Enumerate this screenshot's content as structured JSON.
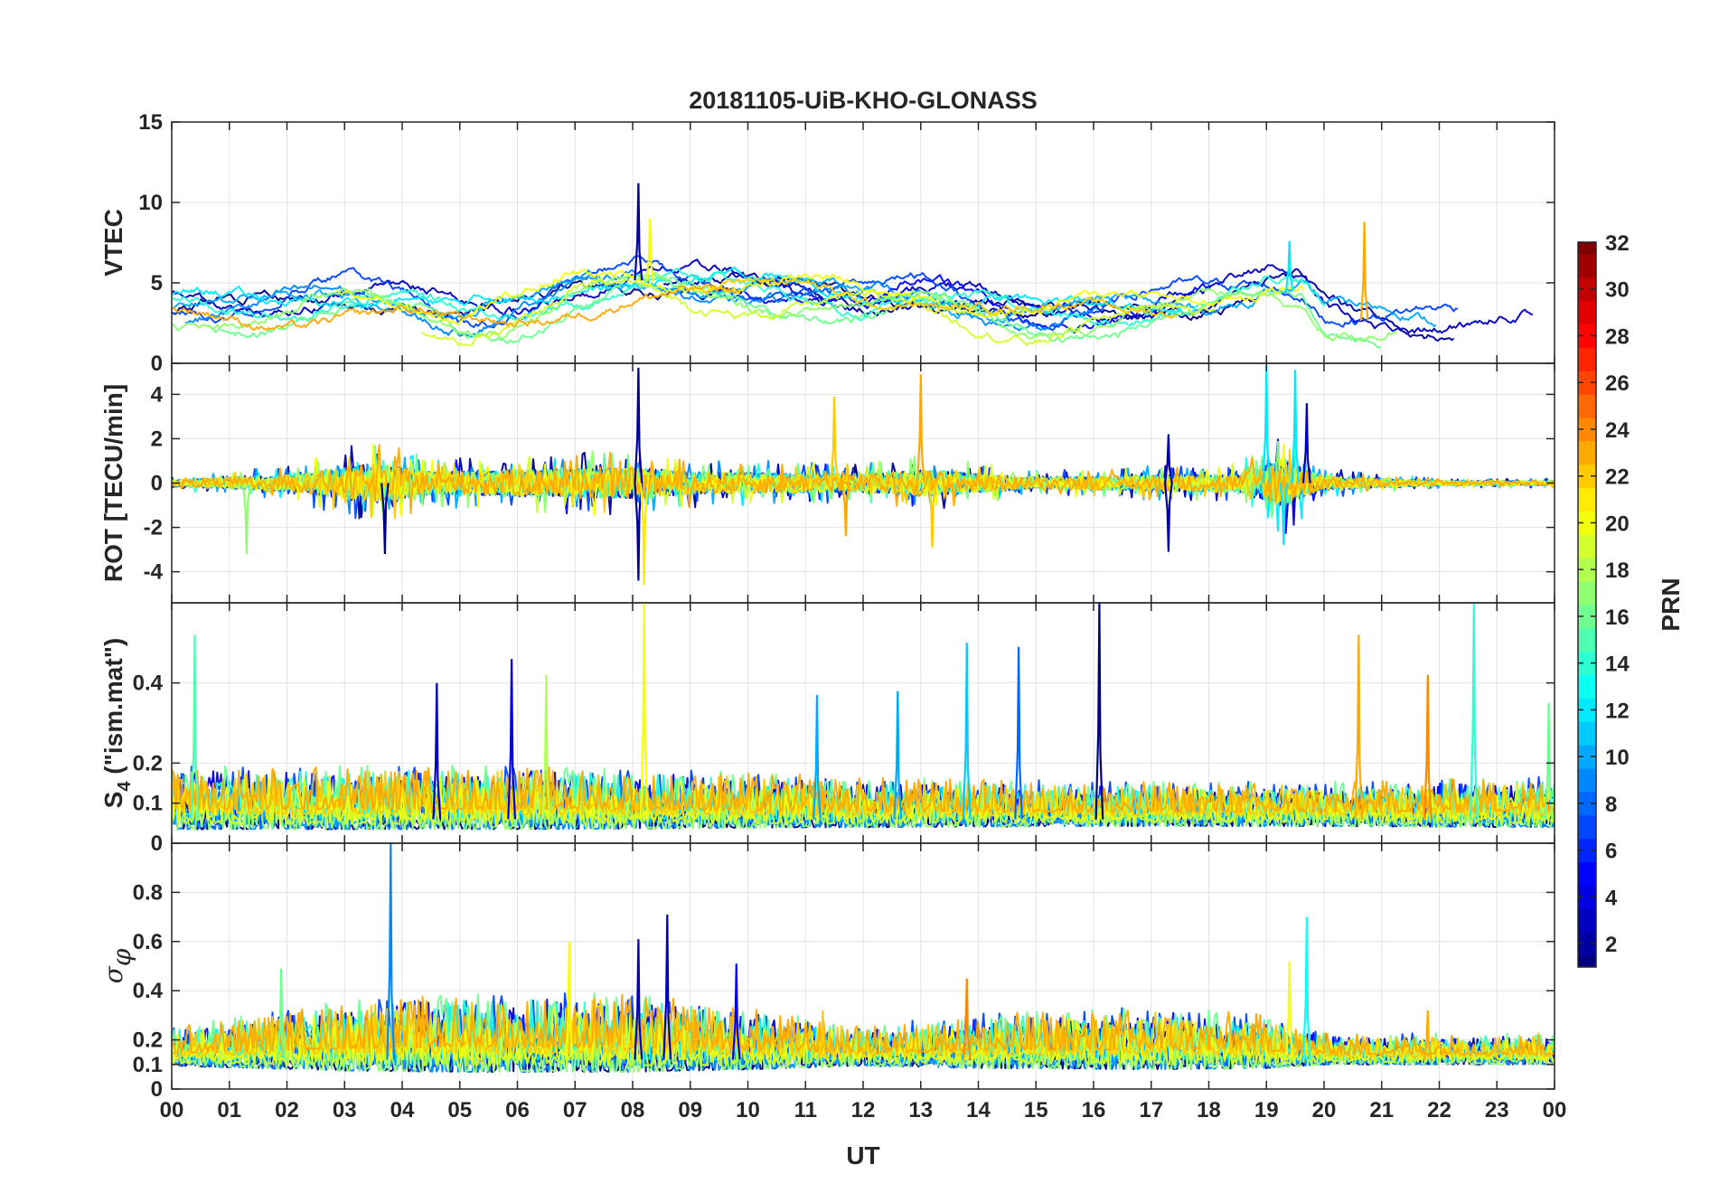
{
  "chart_data": {
    "type": "line",
    "title": "20181105-UiB-KHO-GLONASS",
    "xlabel": "UT",
    "xlim": [
      0,
      24
    ],
    "x_ticks": [
      0,
      1,
      2,
      3,
      4,
      5,
      6,
      7,
      8,
      9,
      10,
      11,
      12,
      13,
      14,
      15,
      16,
      17,
      18,
      19,
      20,
      21,
      22,
      23,
      24
    ],
    "x_tick_labels": [
      "00",
      "01",
      "02",
      "03",
      "04",
      "05",
      "06",
      "07",
      "08",
      "09",
      "10",
      "11",
      "12",
      "13",
      "14",
      "15",
      "16",
      "17",
      "18",
      "19",
      "20",
      "21",
      "22",
      "23",
      "00"
    ],
    "grid": true,
    "panels": [
      {
        "id": "vtec",
        "ylabel": "VTEC",
        "ylim": [
          0,
          15
        ],
        "y_ticks": [
          0,
          5,
          10,
          15
        ],
        "y_tick_labels": [
          "0",
          "5",
          "10",
          "15"
        ],
        "kind": "smooth",
        "baseline": [
          [
            0,
            3.2
          ],
          [
            1.5,
            3.2
          ],
          [
            3,
            4.2
          ],
          [
            4,
            3.8
          ],
          [
            5,
            2.6
          ],
          [
            6,
            3.0
          ],
          [
            7,
            4.4
          ],
          [
            8,
            5.2
          ],
          [
            9,
            4.8
          ],
          [
            10,
            4.3
          ],
          [
            11,
            4.1
          ],
          [
            12,
            3.8
          ],
          [
            13,
            4.2
          ],
          [
            14,
            3.4
          ],
          [
            15,
            2.6
          ],
          [
            16,
            2.9
          ],
          [
            17,
            3.4
          ],
          [
            18,
            3.8
          ],
          [
            19,
            4.6
          ],
          [
            19.6,
            4.4
          ],
          [
            20,
            3.0
          ],
          [
            21,
            2.5
          ],
          [
            22,
            2.2
          ],
          [
            24,
            1.8
          ]
        ],
        "spread": 1.4,
        "noise": 0.35,
        "spikes": [
          [
            8.1,
            2,
            11.2
          ],
          [
            8.3,
            20,
            9.0
          ],
          [
            19.4,
            12,
            7.6
          ],
          [
            20.7,
            23,
            8.8
          ]
        ]
      },
      {
        "id": "rot",
        "ylabel": "ROT [TECU/min]",
        "ylim": [
          -5.4,
          5.4
        ],
        "y_ticks": [
          -4,
          -2,
          0,
          2,
          4
        ],
        "y_tick_labels": [
          "-4",
          "-2",
          "0",
          "2",
          "4"
        ],
        "kind": "centered",
        "baseline": [
          [
            0,
            0
          ],
          [
            24,
            0
          ]
        ],
        "amplitude": [
          [
            0,
            0.15
          ],
          [
            2,
            0.35
          ],
          [
            3.5,
            0.9
          ],
          [
            4.5,
            0.5
          ],
          [
            6,
            0.6
          ],
          [
            8,
            0.7
          ],
          [
            9,
            0.5
          ],
          [
            12,
            0.4
          ],
          [
            13,
            0.6
          ],
          [
            15,
            0.25
          ],
          [
            17,
            0.35
          ],
          [
            18.5,
            0.4
          ],
          [
            19.3,
            1.1
          ],
          [
            20,
            0.3
          ],
          [
            22,
            0.1
          ],
          [
            24,
            0.1
          ]
        ],
        "spikes": [
          [
            8.1,
            2,
            5.2
          ],
          [
            8.1,
            2,
            -4.4
          ],
          [
            8.2,
            21,
            -4.6
          ],
          [
            11.5,
            22,
            3.9
          ],
          [
            11.7,
            23,
            -2.4
          ],
          [
            13.0,
            23,
            4.9
          ],
          [
            13.2,
            22,
            -2.9
          ],
          [
            17.3,
            2,
            2.2
          ],
          [
            17.3,
            2,
            -3.1
          ],
          [
            19.0,
            12,
            5.3
          ],
          [
            19.3,
            12,
            -2.8
          ],
          [
            19.5,
            12,
            5.1
          ],
          [
            19.7,
            3,
            3.6
          ],
          [
            1.3,
            17,
            -3.2
          ],
          [
            3.7,
            1,
            -3.2
          ]
        ]
      },
      {
        "id": "s4",
        "ylabel": "S_4 (\"ism.mat\")",
        "ylabel_base": "S",
        "ylabel_sub": "4",
        "ylabel_rest": " (\"ism.mat\")",
        "ylim": [
          0,
          0.6
        ],
        "y_ticks": [
          0,
          0.1,
          0.2,
          0.4
        ],
        "y_tick_labels": [
          "0",
          "0.1",
          "0.2",
          "0.4"
        ],
        "kind": "floor",
        "baseline": [
          [
            0,
            0.06
          ],
          [
            24,
            0.06
          ]
        ],
        "amplitude": [
          [
            0,
            0.05
          ],
          [
            6,
            0.05
          ],
          [
            9,
            0.045
          ],
          [
            12,
            0.04
          ],
          [
            16,
            0.035
          ],
          [
            20,
            0.035
          ],
          [
            24,
            0.04
          ]
        ],
        "spikes": [
          [
            0.4,
            15,
            0.52
          ],
          [
            4.6,
            3,
            0.4
          ],
          [
            5.9,
            4,
            0.46
          ],
          [
            6.5,
            18,
            0.42
          ],
          [
            8.2,
            20,
            0.6
          ],
          [
            11.2,
            10,
            0.37
          ],
          [
            12.6,
            10,
            0.38
          ],
          [
            13.8,
            11,
            0.5
          ],
          [
            14.7,
            8,
            0.49
          ],
          [
            16.1,
            1,
            0.6
          ],
          [
            20.6,
            23,
            0.52
          ],
          [
            21.8,
            24,
            0.42
          ],
          [
            22.6,
            14,
            0.6
          ],
          [
            23.9,
            16,
            0.35
          ]
        ]
      },
      {
        "id": "sigma",
        "ylabel": "σ_φ",
        "ylabel_base": "σ",
        "ylabel_sub": "φ",
        "ylim": [
          0,
          1
        ],
        "y_ticks": [
          0,
          0.1,
          0.2,
          0.4,
          0.6,
          0.8
        ],
        "y_tick_labels": [
          "0",
          "0.1",
          "0.2",
          "0.4",
          "0.6",
          "0.8"
        ],
        "kind": "floor",
        "baseline": [
          [
            0,
            0.12
          ],
          [
            24,
            0.12
          ]
        ],
        "amplitude": [
          [
            0,
            0.05
          ],
          [
            3,
            0.09
          ],
          [
            5,
            0.1
          ],
          [
            8,
            0.1
          ],
          [
            10,
            0.08
          ],
          [
            12,
            0.05
          ],
          [
            14,
            0.07
          ],
          [
            17,
            0.08
          ],
          [
            19,
            0.07
          ],
          [
            20,
            0.04
          ],
          [
            24,
            0.04
          ]
        ],
        "spikes": [
          [
            3.8,
            9,
            1.0
          ],
          [
            8.1,
            3,
            0.61
          ],
          [
            8.6,
            3,
            0.71
          ],
          [
            9.8,
            5,
            0.51
          ],
          [
            6.9,
            20,
            0.6
          ],
          [
            13.8,
            24,
            0.45
          ],
          [
            19.4,
            20,
            0.52
          ],
          [
            19.7,
            13,
            0.7
          ],
          [
            1.9,
            16,
            0.49
          ],
          [
            11.3,
            22,
            0.32
          ],
          [
            21.8,
            23,
            0.32
          ]
        ]
      }
    ],
    "colorbar": {
      "label": "PRN",
      "range": [
        1,
        32
      ],
      "ticks": [
        2,
        4,
        6,
        8,
        10,
        12,
        14,
        16,
        18,
        20,
        22,
        24,
        26,
        28,
        30,
        32
      ],
      "tick_labels": [
        "2",
        "4",
        "6",
        "8",
        "10",
        "12",
        "14",
        "16",
        "18",
        "20",
        "22",
        "24",
        "26",
        "28",
        "30",
        "32"
      ],
      "colormap": "jet"
    },
    "series_prns": [
      1,
      2,
      3,
      5,
      7,
      9,
      10,
      12,
      14,
      16,
      17,
      19,
      20,
      22,
      23
    ]
  }
}
